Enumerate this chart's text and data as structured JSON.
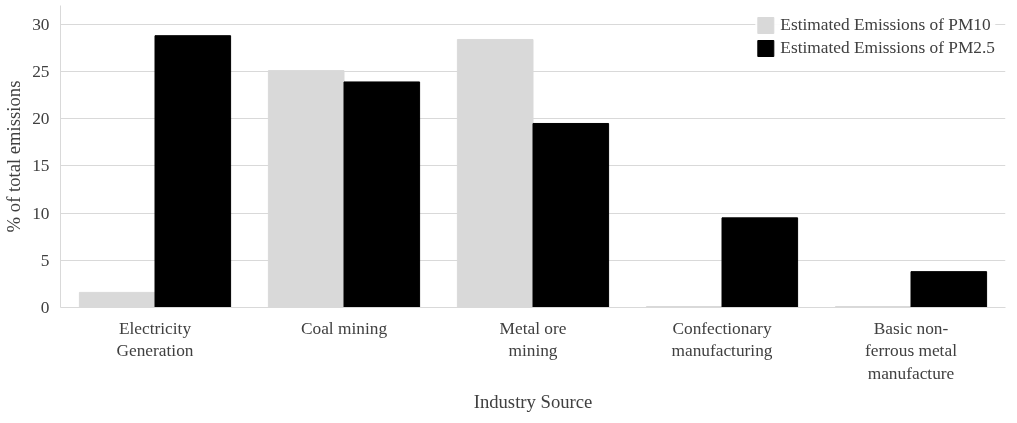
{
  "chart_data": {
    "type": "bar",
    "xlabel": "Industry Source",
    "ylabel": "% of total emissions",
    "categories": [
      "Electricity\nGeneration",
      "Coal mining",
      "Metal ore\nmining",
      "Confectionary\nmanufacturing",
      "Basic non-\nferrous metal\nmanufacture"
    ],
    "series": [
      {
        "name": "Estimated Emissions of PM10",
        "color": "#d9d9d9",
        "values": [
          1.6,
          25.1,
          28.4,
          0.1,
          0.1
        ]
      },
      {
        "name": "Estimated Emissions of PM2.5",
        "color": "#000000",
        "values": [
          28.8,
          23.9,
          19.5,
          9.5,
          3.8
        ]
      }
    ],
    "ylim": [
      0,
      32
    ],
    "yticks": [
      0,
      5,
      10,
      15,
      20,
      25,
      30
    ],
    "grid": "y",
    "legend": "top right"
  }
}
